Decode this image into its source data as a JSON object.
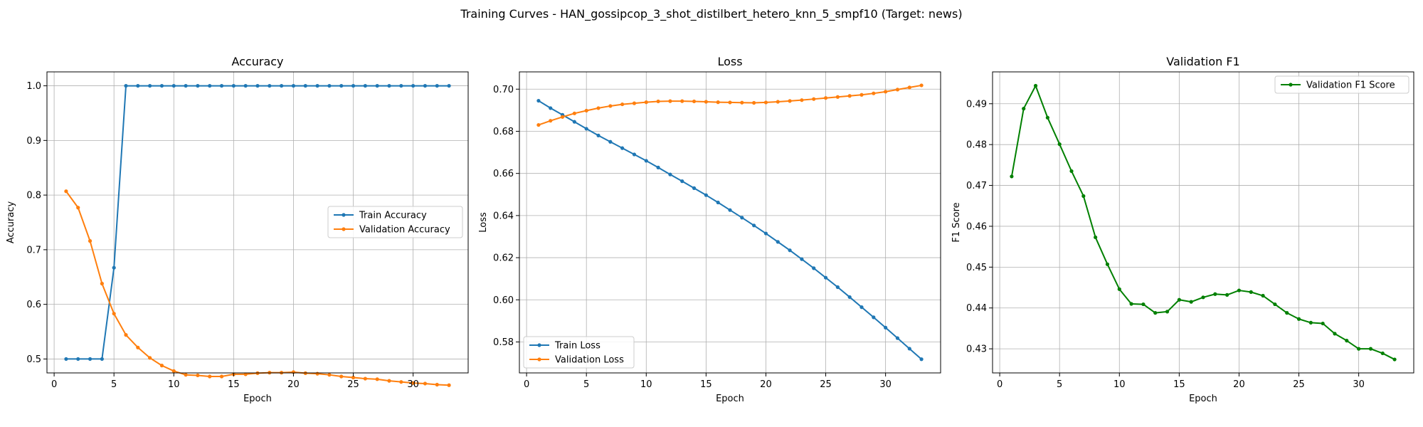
{
  "figure": {
    "suptitle": "Training Curves - HAN_gossipcop_3_shot_distilbert_hetero_knn_5_smpf10 (Target: news)"
  },
  "colors": {
    "train": "#1f77b4",
    "validation": "#ff7f0e",
    "f1": "#008000",
    "grid": "#b0b0b0"
  },
  "chart_data": [
    {
      "type": "line",
      "title": "Accuracy",
      "xlabel": "Epoch",
      "ylabel": "Accuracy",
      "xlim": [
        -0.6,
        34.6
      ],
      "ylim": [
        0.4745,
        1.0255
      ],
      "xticks": [
        0,
        5,
        10,
        15,
        20,
        25,
        30
      ],
      "yticks": [
        0.5,
        0.6,
        0.7,
        0.8,
        0.9,
        1.0
      ],
      "ytick_labels": [
        "0.5",
        "0.6",
        "0.7",
        "0.8",
        "0.9",
        "1.0"
      ],
      "grid": true,
      "legend_position": "center-right",
      "x": [
        1,
        2,
        3,
        4,
        5,
        6,
        7,
        8,
        9,
        10,
        11,
        12,
        13,
        14,
        15,
        16,
        17,
        18,
        19,
        20,
        21,
        22,
        23,
        24,
        25,
        26,
        27,
        28,
        29,
        30,
        31,
        32,
        33
      ],
      "series": [
        {
          "name": "Train Accuracy",
          "color": "#1f77b4",
          "values": [
            0.5,
            0.5,
            0.5,
            0.5,
            0.667,
            1,
            1,
            1,
            1,
            1,
            1,
            1,
            1,
            1,
            1,
            1,
            1,
            1,
            1,
            1,
            1,
            1,
            1,
            1,
            1,
            1,
            1,
            1,
            1,
            1,
            1,
            1,
            1
          ]
        },
        {
          "name": "Validation Accuracy",
          "color": "#ff7f0e",
          "values": [
            0.807,
            0.777,
            0.716,
            0.638,
            0.583,
            0.544,
            0.521,
            0.502,
            0.488,
            0.478,
            0.471,
            0.47,
            0.468,
            0.468,
            0.472,
            0.472,
            0.474,
            0.475,
            0.475,
            0.476,
            0.474,
            0.473,
            0.471,
            0.468,
            0.466,
            0.464,
            0.463,
            0.46,
            0.458,
            0.456,
            0.455,
            0.453,
            0.452
          ]
        }
      ]
    },
    {
      "type": "line",
      "title": "Loss",
      "xlabel": "Epoch",
      "ylabel": "Loss",
      "xlim": [
        -0.6,
        34.6
      ],
      "ylim": [
        0.5653,
        0.7082
      ],
      "xticks": [
        0,
        5,
        10,
        15,
        20,
        25,
        30
      ],
      "yticks": [
        0.58,
        0.6,
        0.62,
        0.64,
        0.66,
        0.68,
        0.7
      ],
      "ytick_labels": [
        "0.58",
        "0.60",
        "0.62",
        "0.64",
        "0.66",
        "0.68",
        "0.70"
      ],
      "grid": true,
      "legend_position": "lower-left",
      "x": [
        1,
        2,
        3,
        4,
        5,
        6,
        7,
        8,
        9,
        10,
        11,
        12,
        13,
        14,
        15,
        16,
        17,
        18,
        19,
        20,
        21,
        22,
        23,
        24,
        25,
        26,
        27,
        28,
        29,
        30,
        31,
        32,
        33
      ],
      "series": [
        {
          "name": "Train Loss",
          "color": "#1f77b4",
          "values": [
            0.6945,
            0.691,
            0.6878,
            0.6845,
            0.6812,
            0.678,
            0.675,
            0.672,
            0.669,
            0.666,
            0.6628,
            0.6595,
            0.6563,
            0.653,
            0.6497,
            0.6462,
            0.6426,
            0.639,
            0.6353,
            0.6315,
            0.6275,
            0.6235,
            0.6193,
            0.615,
            0.6105,
            0.606,
            0.6013,
            0.5965,
            0.5917,
            0.5868,
            0.5818,
            0.5768,
            0.5718
          ]
        },
        {
          "name": "Validation Loss",
          "color": "#ff7f0e",
          "values": [
            0.683,
            0.685,
            0.6868,
            0.6885,
            0.6898,
            0.691,
            0.692,
            0.6928,
            0.6933,
            0.6938,
            0.6942,
            0.6943,
            0.6943,
            0.6942,
            0.694,
            0.6938,
            0.6937,
            0.6936,
            0.6935,
            0.6937,
            0.694,
            0.6944,
            0.6948,
            0.6953,
            0.6958,
            0.6963,
            0.6968,
            0.6973,
            0.698,
            0.6988,
            0.6998,
            0.7008,
            0.7018
          ]
        }
      ]
    },
    {
      "type": "line",
      "title": "Validation F1",
      "xlabel": "Epoch",
      "ylabel": "F1 Score",
      "xlim": [
        -0.6,
        34.6
      ],
      "ylim": [
        0.4241,
        0.4978
      ],
      "xticks": [
        0,
        5,
        10,
        15,
        20,
        25,
        30
      ],
      "yticks": [
        0.43,
        0.44,
        0.45,
        0.46,
        0.47,
        0.48,
        0.49
      ],
      "ytick_labels": [
        "0.43",
        "0.44",
        "0.45",
        "0.46",
        "0.47",
        "0.48",
        "0.49"
      ],
      "grid": true,
      "legend_position": "top-right",
      "x": [
        1,
        2,
        3,
        4,
        5,
        6,
        7,
        8,
        9,
        10,
        11,
        12,
        13,
        14,
        15,
        16,
        17,
        18,
        19,
        20,
        21,
        22,
        23,
        24,
        25,
        26,
        27,
        28,
        29,
        30,
        31,
        32,
        33
      ],
      "series": [
        {
          "name": "Validation F1 Score",
          "color": "#008000",
          "values": [
            0.4722,
            0.4888,
            0.4944,
            0.4866,
            0.4801,
            0.4735,
            0.4674,
            0.4573,
            0.4507,
            0.4446,
            0.441,
            0.4409,
            0.4388,
            0.4391,
            0.442,
            0.4415,
            0.4426,
            0.4434,
            0.4432,
            0.4443,
            0.4439,
            0.443,
            0.4409,
            0.4388,
            0.4373,
            0.4364,
            0.4362,
            0.4337,
            0.432,
            0.43,
            0.43,
            0.4289,
            0.4274
          ]
        }
      ]
    }
  ]
}
